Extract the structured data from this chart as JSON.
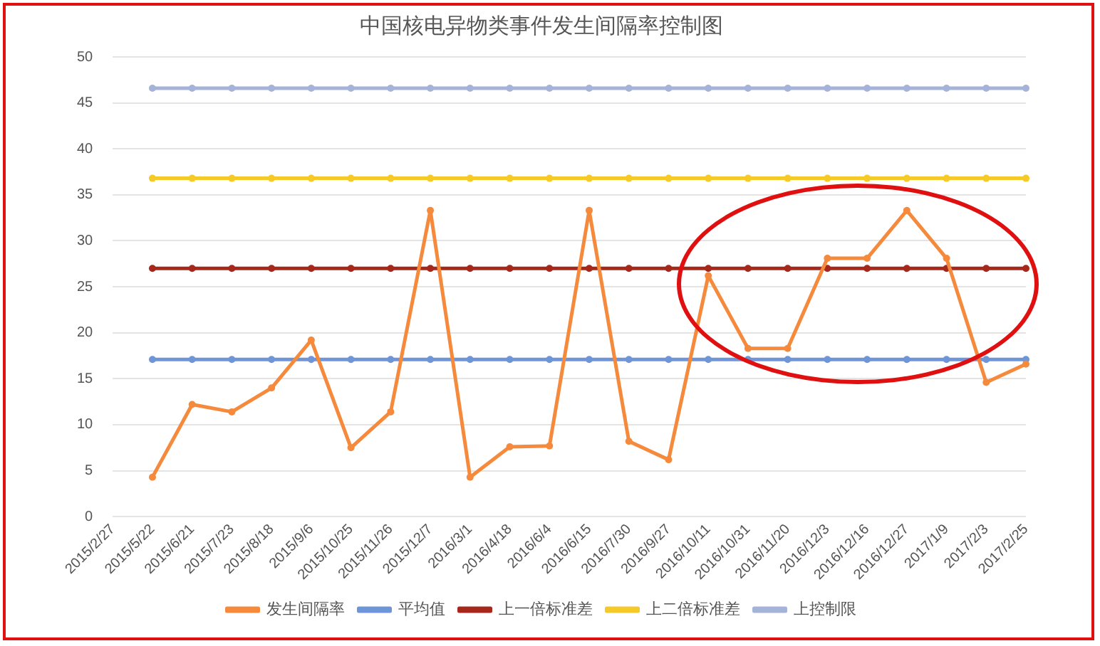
{
  "chart_data": {
    "type": "line",
    "title": "中国核电异物类事件发生间隔率控制图",
    "categories": [
      "2015/2/27",
      "2015/5/22",
      "2015/6/21",
      "2015/7/23",
      "2015/8/18",
      "2015/9/6",
      "2015/10/25",
      "2015/11/26",
      "2015/12/7",
      "2016/3/1",
      "2016/4/18",
      "2016/6/4",
      "2016/6/15",
      "2016/7/30",
      "2016/9/27",
      "2016/10/11",
      "2016/10/31",
      "2016/11/20",
      "2016/12/3",
      "2016/12/16",
      "2016/12/27",
      "2017/1/9",
      "2017/2/3",
      "2017/2/25"
    ],
    "series": [
      {
        "name": "发生间隔率",
        "color": "#f58a3c",
        "values": [
          null,
          4.3,
          12.2,
          11.4,
          14.0,
          19.2,
          7.5,
          11.4,
          33.3,
          4.3,
          7.6,
          7.7,
          33.3,
          8.2,
          6.2,
          26.2,
          18.3,
          18.3,
          28.1,
          28.1,
          33.3,
          28.1,
          14.6,
          16.6
        ]
      },
      {
        "name": "平均值",
        "color": "#6f95d9",
        "values": [
          null,
          17.1,
          17.1,
          17.1,
          17.1,
          17.1,
          17.1,
          17.1,
          17.1,
          17.1,
          17.1,
          17.1,
          17.1,
          17.1,
          17.1,
          17.1,
          17.1,
          17.1,
          17.1,
          17.1,
          17.1,
          17.1,
          17.1,
          17.1
        ]
      },
      {
        "name": "上一倍标准差",
        "color": "#a5281b",
        "values": [
          null,
          27.0,
          27.0,
          27.0,
          27.0,
          27.0,
          27.0,
          27.0,
          27.0,
          27.0,
          27.0,
          27.0,
          27.0,
          27.0,
          27.0,
          27.0,
          27.0,
          27.0,
          27.0,
          27.0,
          27.0,
          27.0,
          27.0,
          27.0
        ]
      },
      {
        "name": "上二倍标准差",
        "color": "#f5c927",
        "values": [
          null,
          36.8,
          36.8,
          36.8,
          36.8,
          36.8,
          36.8,
          36.8,
          36.8,
          36.8,
          36.8,
          36.8,
          36.8,
          36.8,
          36.8,
          36.8,
          36.8,
          36.8,
          36.8,
          36.8,
          36.8,
          36.8,
          36.8,
          36.8
        ]
      },
      {
        "name": "上控制限",
        "color": "#a6b3d9",
        "values": [
          null,
          46.6,
          46.6,
          46.6,
          46.6,
          46.6,
          46.6,
          46.6,
          46.6,
          46.6,
          46.6,
          46.6,
          46.6,
          46.6,
          46.6,
          46.6,
          46.6,
          46.6,
          46.6,
          46.6,
          46.6,
          46.6,
          46.6,
          46.6
        ]
      }
    ],
    "ylim": [
      0,
      50
    ],
    "yticks": [
      0,
      5,
      10,
      15,
      20,
      25,
      30,
      35,
      40,
      45,
      50
    ],
    "grid": "y",
    "legend": "bottom",
    "marker": "circle",
    "line_style": "solid"
  }
}
